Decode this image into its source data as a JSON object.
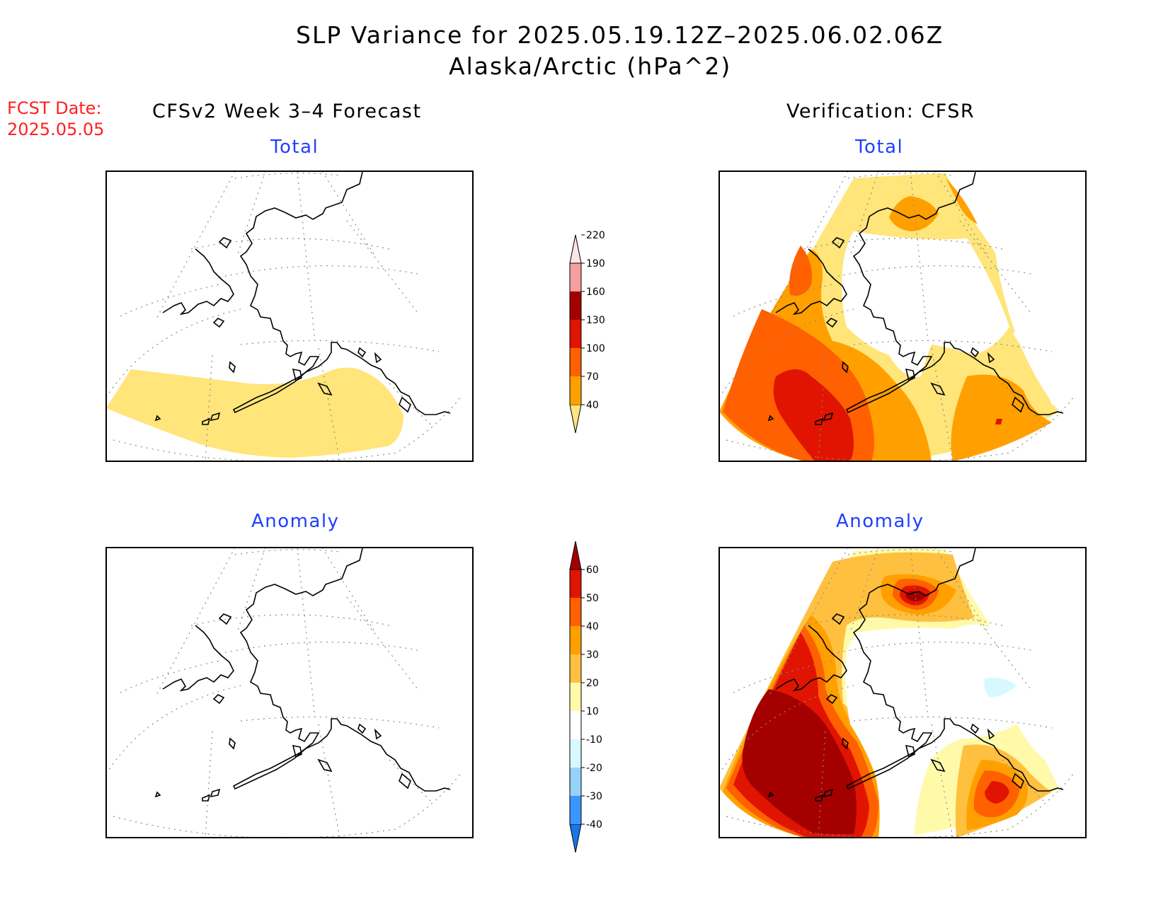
{
  "title": "SLP Variance for 2025.05.19.12Z–2025.06.02.06Z",
  "subtitle": "Alaska/Arctic (hPa^2)",
  "fcst_label": "FCST Date:",
  "fcst_date": "2025.05.05",
  "left_header": "CFSv2 Week 3–4 Forecast",
  "right_header": "Verification: CFSR",
  "panels": {
    "forecast_total": "Total",
    "forecast_anomaly": "Anomaly",
    "verification_total": "Total",
    "verification_anomaly": "Anomaly"
  },
  "colorbar_total": {
    "levels": [
      "40",
      "70",
      "100",
      "130",
      "160",
      "190",
      "220"
    ],
    "colors": [
      "#ffe57a",
      "#ffa000",
      "#ff6000",
      "#e01400",
      "#a50000",
      "#f4a0a0",
      "#ffe4e4"
    ]
  },
  "colorbar_anomaly": {
    "levels": [
      "-40",
      "-30",
      "-20",
      "-10",
      "10",
      "20",
      "30",
      "40",
      "50",
      "60"
    ],
    "colors": [
      "#1878e8",
      "#3c96ff",
      "#96d2fa",
      "#d8f8ff",
      "#ffffff",
      "#fffaaa",
      "#ffc040",
      "#ffa000",
      "#ff6000",
      "#e01400",
      "#a50000"
    ]
  }
}
